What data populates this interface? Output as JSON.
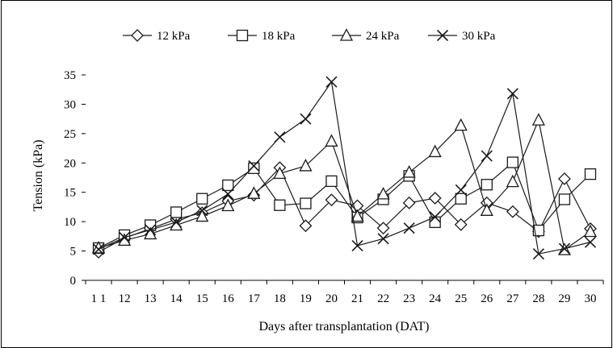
{
  "chart_data": {
    "type": "line",
    "title": "",
    "xlabel": "Days after transplantation (DAT)",
    "ylabel": "Tension (kPa)",
    "ylim": [
      0,
      35
    ],
    "yticks": [
      0,
      5,
      10,
      15,
      20,
      25,
      30,
      35
    ],
    "x": [
      11,
      12,
      13,
      14,
      15,
      16,
      17,
      18,
      19,
      20,
      21,
      22,
      23,
      24,
      25,
      26,
      27,
      28,
      29,
      30
    ],
    "x_tick_labels": [
      "1 1",
      "12",
      "13",
      "14",
      "15",
      "16",
      "17",
      "18",
      "19",
      "20",
      "21",
      "22",
      "23",
      "24",
      "25",
      "26",
      "27",
      "28",
      "29",
      "30"
    ],
    "grid": false,
    "legend_position": "top",
    "series": [
      {
        "name": "12 kPa",
        "marker": "diamond",
        "values": [
          4.8,
          7.2,
          8.8,
          10.4,
          11.5,
          13.5,
          14.5,
          19.2,
          9.3,
          13.7,
          12.7,
          8.9,
          13.2,
          14.0,
          9.5,
          13.2,
          11.7,
          8.3,
          17.3,
          8.8
        ]
      },
      {
        "name": "18 kPa",
        "marker": "square",
        "values": [
          5.5,
          7.7,
          9.4,
          11.6,
          13.9,
          16.2,
          19.1,
          12.8,
          13.1,
          16.9,
          10.7,
          13.8,
          17.8,
          9.9,
          13.9,
          16.3,
          20.1,
          8.5,
          13.8,
          18.1
        ]
      },
      {
        "name": "24 kPa",
        "marker": "triangle",
        "values": [
          5.5,
          6.8,
          7.9,
          9.4,
          10.9,
          12.7,
          14.8,
          18.2,
          19.5,
          23.7,
          10.9,
          14.7,
          18.4,
          21.9,
          26.4,
          11.9,
          16.8,
          27.3,
          5.2,
          8.3
        ]
      },
      {
        "name": "30 kPa",
        "marker": "x",
        "values": [
          5.3,
          7.3,
          8.6,
          9.9,
          11.9,
          14.7,
          19.5,
          24.4,
          27.5,
          33.8,
          5.9,
          7.1,
          8.9,
          10.8,
          15.4,
          21.2,
          31.8,
          4.5,
          5.4,
          6.5
        ]
      }
    ]
  }
}
